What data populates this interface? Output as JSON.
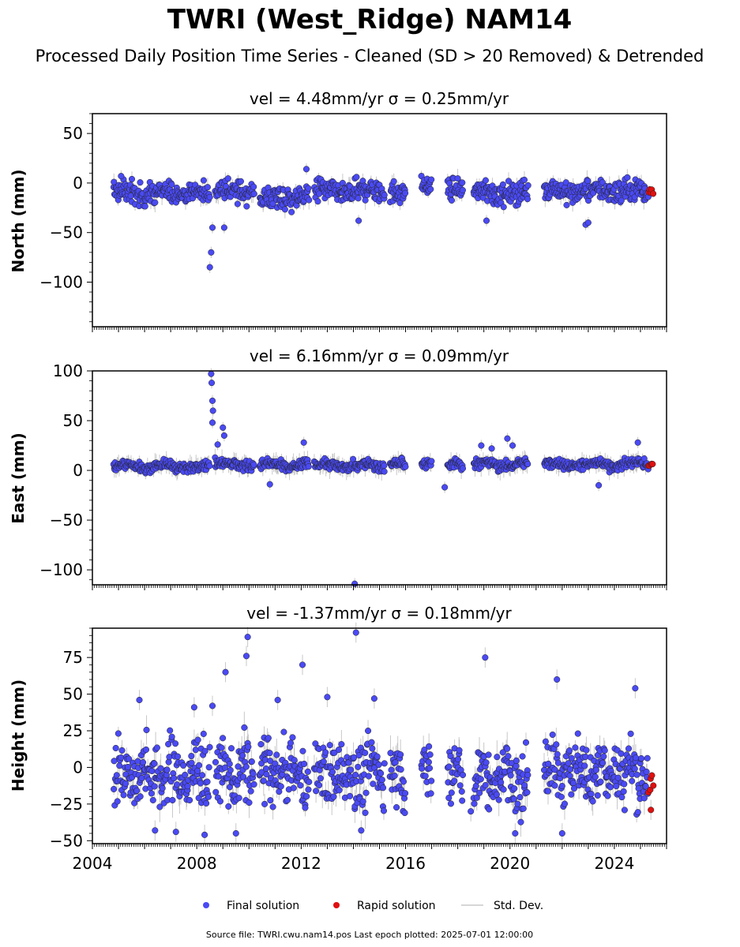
{
  "title": "TWRI (West_Ridge) NAM14",
  "subtitle": "Processed Daily Position Time Series - Cleaned (SD > 20 Removed) & Detrended",
  "legend": {
    "final": "Final solution",
    "rapid": "Rapid solution",
    "sd": "Std. Dev."
  },
  "footer": "Source file: TWRI.cwu.nam14.pos  Last epoch plotted: 2025-07-01 12:00:00",
  "colors": {
    "final": "#4a4af4",
    "rapid": "#e01010",
    "sd": "#b0b0b0"
  },
  "chart_data": [
    {
      "type": "scatter",
      "panel": "north",
      "title": "vel = 4.48mm/yr   σ = 0.25mm/yr",
      "ylabel": "North (mm)",
      "ylim": [
        -145,
        70
      ],
      "yticks": [
        50,
        0,
        -50,
        -100
      ],
      "ytick_labels": [
        "50",
        "0",
        "−50",
        "−100"
      ],
      "xlim": [
        2004.0,
        2026.0
      ],
      "xticks": [
        2004,
        2008,
        2012,
        2016,
        2020,
        2024
      ],
      "xtick_labels": [],
      "series": [
        {
          "name": "Final solution",
          "color": "#4a4af4",
          "segments": [
            [
              2004.8,
              2008.5,
              -10
            ],
            [
              2008.7,
              2010.2,
              -8
            ],
            [
              2010.4,
              2012.3,
              -15
            ],
            [
              2012.5,
              2015.2,
              -8
            ],
            [
              2015.4,
              2016.0,
              -10
            ],
            [
              2016.6,
              2017.0,
              -5
            ],
            [
              2017.6,
              2018.2,
              -8
            ],
            [
              2018.6,
              2020.7,
              -10
            ],
            [
              2021.3,
              2025.3,
              -8
            ]
          ],
          "outliers": [
            [
              2005.1,
              7
            ],
            [
              2008.5,
              -85
            ],
            [
              2008.55,
              -70
            ],
            [
              2008.6,
              -45
            ],
            [
              2009.05,
              -45
            ],
            [
              2012.2,
              14
            ],
            [
              2014.2,
              -38
            ],
            [
              2019.1,
              -38
            ],
            [
              2022.9,
              -42
            ],
            [
              2023.0,
              -40
            ]
          ]
        },
        {
          "name": "Rapid solution",
          "color": "#e01010",
          "segments": [
            [
              2025.3,
              2025.5,
              -7
            ]
          ],
          "outliers": []
        }
      ]
    },
    {
      "type": "scatter",
      "panel": "east",
      "title": "vel = 6.16mm/yr   σ = 0.09mm/yr",
      "ylabel": "East (mm)",
      "ylim": [
        -115,
        100
      ],
      "yticks": [
        100,
        50,
        0,
        -50,
        -100
      ],
      "ytick_labels": [
        "100",
        "50",
        "0",
        "−50",
        "−100"
      ],
      "xlim": [
        2004.0,
        2026.0
      ],
      "xticks": [
        2004,
        2008,
        2012,
        2016,
        2020,
        2024
      ],
      "xtick_labels": [],
      "series": [
        {
          "name": "Final solution",
          "color": "#4a4af4",
          "segments": [
            [
              2004.8,
              2008.5,
              4
            ],
            [
              2008.7,
              2010.2,
              6
            ],
            [
              2010.4,
              2012.3,
              5
            ],
            [
              2012.5,
              2015.2,
              5
            ],
            [
              2015.4,
              2016.0,
              6
            ],
            [
              2016.6,
              2017.0,
              5
            ],
            [
              2017.6,
              2018.2,
              5
            ],
            [
              2018.6,
              2020.7,
              6
            ],
            [
              2021.3,
              2025.3,
              6
            ]
          ],
          "outliers": [
            [
              2008.55,
              97
            ],
            [
              2008.57,
              88
            ],
            [
              2008.6,
              70
            ],
            [
              2008.62,
              60
            ],
            [
              2008.6,
              48
            ],
            [
              2009.0,
              43
            ],
            [
              2009.05,
              35
            ],
            [
              2008.8,
              26
            ],
            [
              2012.1,
              28
            ],
            [
              2014.05,
              -114
            ],
            [
              2017.5,
              -17
            ],
            [
              2018.9,
              25
            ],
            [
              2019.3,
              22
            ],
            [
              2019.9,
              32
            ],
            [
              2020.1,
              25
            ],
            [
              2023.4,
              -15
            ],
            [
              2024.9,
              28
            ],
            [
              2010.8,
              -14
            ]
          ]
        },
        {
          "name": "Rapid solution",
          "color": "#e01010",
          "segments": [
            [
              2025.3,
              2025.5,
              5
            ]
          ],
          "outliers": []
        }
      ]
    },
    {
      "type": "scatter",
      "panel": "height",
      "title": "vel = -1.37mm/yr   σ = 0.18mm/yr",
      "ylabel": "Height (mm)",
      "ylim": [
        -52,
        95
      ],
      "yticks": [
        75,
        50,
        25,
        0,
        -25,
        -50
      ],
      "ytick_labels": [
        "75",
        "50",
        "25",
        "0",
        "−25",
        "−50"
      ],
      "xlim": [
        2004.0,
        2026.0
      ],
      "xticks": [
        2004,
        2008,
        2012,
        2016,
        2020,
        2024
      ],
      "xtick_labels": [
        "2004",
        "2008",
        "2012",
        "2016",
        "2020",
        "2024"
      ],
      "series": [
        {
          "name": "Final solution",
          "color": "#4a4af4",
          "segments": [
            [
              2004.8,
              2008.5,
              -5
            ],
            [
              2008.7,
              2010.2,
              -5
            ],
            [
              2010.4,
              2012.3,
              -5
            ],
            [
              2012.5,
              2015.2,
              -5
            ],
            [
              2015.4,
              2016.0,
              -5
            ],
            [
              2016.6,
              2017.0,
              -5
            ],
            [
              2017.6,
              2018.2,
              -5
            ],
            [
              2018.6,
              2020.7,
              -8
            ],
            [
              2021.3,
              2025.3,
              -2
            ]
          ],
          "outliers": [
            [
              2009.95,
              89
            ],
            [
              2014.1,
              92
            ],
            [
              2009.9,
              76
            ],
            [
              2019.05,
              75
            ],
            [
              2012.05,
              70
            ],
            [
              2009.1,
              65
            ],
            [
              2021.8,
              60
            ],
            [
              2024.8,
              54
            ],
            [
              2005.8,
              46
            ],
            [
              2007.9,
              41
            ],
            [
              2008.6,
              42
            ],
            [
              2011.1,
              46
            ],
            [
              2013.0,
              48
            ],
            [
              2014.8,
              47
            ],
            [
              2006.4,
              -43
            ],
            [
              2007.2,
              -44
            ],
            [
              2008.3,
              -46
            ],
            [
              2009.5,
              -45
            ],
            [
              2014.3,
              -43
            ],
            [
              2020.2,
              -45
            ],
            [
              2022.0,
              -45
            ],
            [
              2018.5,
              -30
            ],
            [
              2010.6,
              -25
            ]
          ]
        },
        {
          "name": "Rapid solution",
          "color": "#e01010",
          "segments": [
            [
              2025.3,
              2025.5,
              -15
            ]
          ],
          "outliers": [
            [
              2025.4,
              -29
            ]
          ]
        }
      ]
    }
  ]
}
